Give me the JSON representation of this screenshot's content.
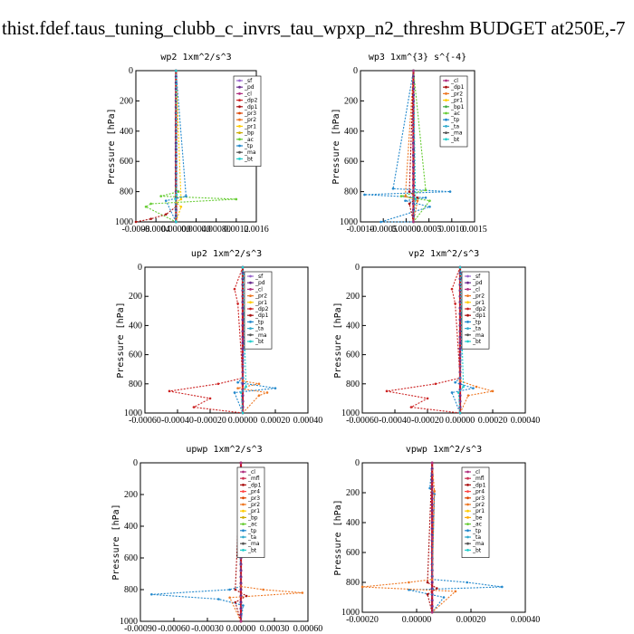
{
  "page": {
    "title": "thist.fdef.taus_tuning_clubb_c_invrs_tau_wpxp_n2_threshm  BUDGET at250E,-7"
  },
  "colors": {
    "_sf": "#9966cc",
    "_pd": "#6a2c8f",
    "_cl": "#b03080",
    "_dp2": "#cc2222",
    "_dp1": "#aa1111",
    "_pr3": "#dd4400",
    "_pr2": "#ee7722",
    "_pr1": "#ffcc00",
    "_bp": "#ccaa00",
    "_ac": "#66cc33",
    "_tp": "#2288cc",
    "_ta": "#33aacc",
    "_ma": "#555555",
    "_bt": "#22cccc",
    "_mfl": "#cc3355",
    "_dp4": "#cc2266",
    "_pr4": "#ff4444",
    "_be": "#ffaa00",
    "_bp1": "#44aa44",
    "profile": "#cc1111"
  },
  "chart_data": [
    {
      "type": "line",
      "title": "wp2  1xm^2/s^3",
      "ylabel": "Pressure [hPa]",
      "ylim": [
        1000,
        0
      ],
      "yticks": [
        0,
        200,
        400,
        600,
        800,
        1000
      ],
      "xlim": [
        -0.0008,
        0.0016
      ],
      "xticks": [
        "-0.0008",
        "-0.0004",
        "0.00000",
        "0.00040",
        "0.00080",
        "0.0012",
        "0.0016"
      ],
      "legend": [
        "_sf",
        "_pd",
        "_cl",
        "_dp2",
        "_dp1",
        "_pr3",
        "_pr2",
        "_pr1",
        "_bp",
        "_ac",
        "_tp",
        "_ma",
        "_bt"
      ],
      "series": [
        {
          "name": "_ac",
          "x": [
            0,
            0,
            5e-05,
            -0.0003,
            0.0012,
            -0.0005,
            -0.0006,
            0
          ],
          "y": [
            0,
            780,
            800,
            830,
            850,
            880,
            900,
            1000
          ]
        },
        {
          "name": "_dp1",
          "x": [
            0,
            0,
            -0.0002,
            -0.0005,
            -0.0008
          ],
          "y": [
            0,
            900,
            950,
            980,
            1000
          ]
        },
        {
          "name": "_pr1",
          "x": [
            0,
            0.0001,
            0,
            0.0001,
            0
          ],
          "y": [
            0,
            850,
            870,
            900,
            1000
          ]
        },
        {
          "name": "_tp",
          "x": [
            0,
            0.0002,
            -0.0002,
            0
          ],
          "y": [
            0,
            830,
            860,
            1000
          ]
        },
        {
          "name": "_pd",
          "x": [
            0,
            0,
            0
          ],
          "y": [
            0,
            500,
            1000
          ]
        },
        {
          "name": "_bt",
          "x": [
            0,
            1e-05,
            -1e-05,
            0
          ],
          "y": [
            0,
            820,
            850,
            1000
          ]
        }
      ]
    },
    {
      "type": "line",
      "title": "wp3  1xm^{3} s^{-4}",
      "ylabel": "Pressure [hPa]",
      "ylim": [
        1000,
        0
      ],
      "yticks": [
        0,
        200,
        400,
        600,
        800,
        1000
      ],
      "xlim": [
        -0.0013,
        0.0015
      ],
      "xticks": [
        "-0.0010",
        "-0.0005",
        "0.00000",
        "0.0005",
        "0.0010",
        "0.0015"
      ],
      "legend": [
        "_cl",
        "_dp1",
        "_pr2",
        "_pr1",
        "_bp1",
        "_ac",
        "_tp",
        "_ta",
        "_ma",
        "_bt"
      ],
      "series": [
        {
          "name": "_tp",
          "x": [
            0,
            -0.0005,
            0.0009,
            -0.0012,
            0.0003,
            -0.0002,
            0.0004,
            -0.0008,
            0
          ],
          "y": [
            0,
            780,
            800,
            820,
            840,
            860,
            900,
            1000,
            1000
          ]
        },
        {
          "name": "_ac",
          "x": [
            0,
            0.0003,
            -0.0003,
            0.0004,
            0
          ],
          "y": [
            0,
            790,
            830,
            860,
            1000
          ]
        },
        {
          "name": "_pr2",
          "x": [
            0,
            -0.0002,
            0.0001,
            0
          ],
          "y": [
            0,
            830,
            860,
            1000
          ]
        },
        {
          "name": "_dp1",
          "x": [
            0,
            -0.0001,
            0.0001,
            -0.0001,
            0
          ],
          "y": [
            0,
            800,
            840,
            880,
            1000
          ]
        },
        {
          "name": "_bt",
          "x": [
            0,
            5e-05,
            0
          ],
          "y": [
            0,
            850,
            1000
          ]
        },
        {
          "name": "_cl",
          "x": [
            0,
            0,
            0
          ],
          "y": [
            0,
            500,
            1000
          ]
        }
      ]
    },
    {
      "type": "line",
      "title": "up2  1xm^2/s^3",
      "ylabel": "Pressure [hPa]",
      "ylim": [
        1000,
        0
      ],
      "yticks": [
        0,
        200,
        400,
        600,
        800,
        1000
      ],
      "xlim": [
        -0.0006,
        0.0004
      ],
      "xticks": [
        "-0.00060",
        "-0.00040",
        "-0.00020",
        "0.00000",
        "0.00020",
        "0.00040"
      ],
      "legend": [
        "_sf",
        "_pd",
        "_cl",
        "_pr2",
        "_pr1",
        "_dp2",
        "_dp1",
        "_tp",
        "_ta",
        "_ma",
        "_bt"
      ],
      "series": [
        {
          "name": "_dp2",
          "x": [
            0,
            -5e-05,
            -3e-05,
            0,
            -0.00015,
            -0.00045,
            -0.0002,
            -0.0003,
            0
          ],
          "y": [
            0,
            150,
            250,
            760,
            800,
            850,
            900,
            960,
            1000
          ]
        },
        {
          "name": "_pr2",
          "x": [
            0,
            0,
            0.0001,
            -3e-05,
            0.00015,
            0.0001,
            0
          ],
          "y": [
            0,
            780,
            800,
            830,
            860,
            880,
            1000
          ]
        },
        {
          "name": "_tp",
          "x": [
            0,
            2e-05,
            0,
            -3e-05,
            0.0002,
            -5e-05,
            0
          ],
          "y": [
            0,
            160,
            760,
            790,
            830,
            860,
            1000
          ]
        },
        {
          "name": "_cl",
          "x": [
            0,
            0,
            0
          ],
          "y": [
            0,
            500,
            1000
          ]
        },
        {
          "name": "_bt",
          "x": [
            0,
            2e-05,
            -1e-05,
            0
          ],
          "y": [
            0,
            820,
            860,
            1000
          ]
        }
      ]
    },
    {
      "type": "line",
      "title": "vp2  1xm^2/s^3",
      "ylabel": "Pressure [hPa]",
      "ylim": [
        1000,
        0
      ],
      "yticks": [
        0,
        200,
        400,
        600,
        800,
        1000
      ],
      "xlim": [
        -0.0006,
        0.0004
      ],
      "xticks": [
        "-0.00060",
        "-0.00040",
        "-0.00020",
        "0.00000",
        "0.00020",
        "0.00040"
      ],
      "legend": [
        "_sf",
        "_pd",
        "_cl",
        "_pr2",
        "_pr1",
        "_dp2",
        "_dp1",
        "_tp",
        "_ta",
        "_ma",
        "_bt"
      ],
      "series": [
        {
          "name": "_dp2",
          "x": [
            0,
            -5e-05,
            -3e-05,
            0,
            -0.00015,
            -0.00045,
            -0.0002,
            -0.0003,
            0
          ],
          "y": [
            0,
            150,
            250,
            760,
            800,
            850,
            900,
            960,
            1000
          ]
        },
        {
          "name": "_pr2",
          "x": [
            0,
            0,
            0.0001,
            0.0002,
            5e-05,
            0
          ],
          "y": [
            0,
            780,
            820,
            850,
            880,
            1000
          ]
        },
        {
          "name": "_tp",
          "x": [
            0,
            2e-05,
            0,
            -3e-05,
            8e-05,
            -5e-05,
            0
          ],
          "y": [
            0,
            160,
            760,
            790,
            830,
            860,
            1000
          ]
        },
        {
          "name": "_cl",
          "x": [
            0,
            0,
            0
          ],
          "y": [
            0,
            500,
            1000
          ]
        },
        {
          "name": "_bt",
          "x": [
            0,
            2e-05,
            -1e-05,
            0
          ],
          "y": [
            0,
            820,
            860,
            1000
          ]
        }
      ]
    },
    {
      "type": "line",
      "title": "upwp  1xm^2/s^3",
      "ylabel": "Pressure [hPa]",
      "ylim": [
        1000,
        0
      ],
      "yticks": [
        0,
        200,
        400,
        600,
        800,
        1000
      ],
      "xlim": [
        -0.0009,
        0.0006
      ],
      "xticks": [
        "-0.00090",
        "-0.00060",
        "-0.00030",
        "0.00000",
        "0.00030",
        "0.00060"
      ],
      "legend": [
        "_cl",
        "_mfl",
        "_dp1",
        "_pr4",
        "_pr3",
        "_pr2",
        "_pr1",
        "_bp",
        "_ac",
        "_tp",
        "_ta",
        "_ma",
        "_bt"
      ],
      "series": [
        {
          "name": "_tp",
          "x": [
            0,
            -2e-05,
            0,
            -0.0001,
            -0.0008,
            -0.0002,
            2e-05,
            0
          ],
          "y": [
            0,
            200,
            780,
            800,
            830,
            860,
            900,
            1000
          ]
        },
        {
          "name": "_pr2",
          "x": [
            0,
            0,
            0.0002,
            0.00055,
            -0.0001,
            0
          ],
          "y": [
            0,
            780,
            800,
            820,
            850,
            1000
          ]
        },
        {
          "name": "_dp1",
          "x": [
            0,
            -5e-05,
            5e-05,
            -5e-05,
            0
          ],
          "y": [
            0,
            800,
            840,
            880,
            1000
          ]
        },
        {
          "name": "_cl",
          "x": [
            0,
            0,
            0
          ],
          "y": [
            0,
            500,
            1000
          ]
        }
      ]
    },
    {
      "type": "line",
      "title": "vpwp  1xm^2/s^3",
      "ylabel": "Pressure [hPa]",
      "ylim": [
        1000,
        0
      ],
      "yticks": [
        0,
        200,
        400,
        600,
        800,
        1000
      ],
      "xlim": [
        -0.0003,
        0.0004
      ],
      "xticks": [
        "-0.00020",
        "0.00000",
        "0.00020",
        "0.00040"
      ],
      "legend": [
        "_cl",
        "_mfl",
        "_dp1",
        "_pr4",
        "_pr3",
        "_pr2",
        "_pr1",
        "_be",
        "_ac",
        "_tp",
        "_ta",
        "_ma",
        "_bt"
      ],
      "series": [
        {
          "name": "_tp",
          "x": [
            0,
            -1e-05,
            1e-05,
            0,
            0.00015,
            0.0003,
            -0.0001,
            5e-05,
            0
          ],
          "y": [
            0,
            170,
            210,
            780,
            800,
            830,
            850,
            900,
            1000
          ]
        },
        {
          "name": "_pr2",
          "x": [
            0,
            1e-05,
            0,
            -0.0001,
            -0.0003,
            0.0001,
            0
          ],
          "y": [
            0,
            190,
            780,
            800,
            830,
            860,
            1000
          ]
        },
        {
          "name": "_dp1",
          "x": [
            0,
            -2e-05,
            2e-05,
            -2e-05,
            0
          ],
          "y": [
            0,
            800,
            840,
            880,
            1000
          ]
        },
        {
          "name": "_cl",
          "x": [
            0,
            0,
            0
          ],
          "y": [
            0,
            500,
            1000
          ]
        }
      ]
    }
  ]
}
